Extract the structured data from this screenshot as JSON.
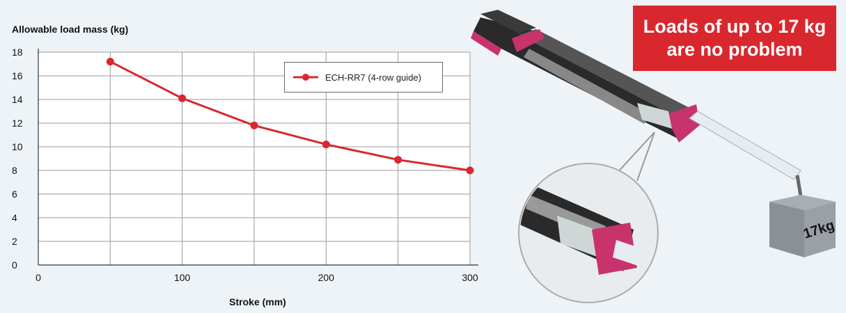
{
  "chart_data": {
    "type": "line",
    "ylabel": "Allowable load mass (kg)",
    "xlabel": "Stroke (mm)",
    "xlim": [
      0,
      300
    ],
    "ylim": [
      0,
      18
    ],
    "xticks": [
      "0",
      "100",
      "200",
      "300"
    ],
    "xtick_values": [
      0,
      100,
      200,
      300
    ],
    "yticks": [
      "0",
      "2",
      "4",
      "6",
      "8",
      "10",
      "12",
      "14",
      "16",
      "18"
    ],
    "ytick_values": [
      0,
      2,
      4,
      6,
      8,
      10,
      12,
      14,
      16,
      18
    ],
    "grid": true,
    "legend_position": "top-right",
    "series": [
      {
        "name": "ECH-RR7 (4-row guide)",
        "color": "#d9272e",
        "x": [
          50,
          100,
          150,
          200,
          250,
          300
        ],
        "y": [
          17.2,
          14.1,
          11.8,
          10.2,
          8.9,
          8.0
        ]
      }
    ]
  },
  "callout": {
    "line1": "Loads of up to 17 kg",
    "line2": "are no problem"
  },
  "illustration": {
    "weight_label": "17kg",
    "accent_color": "#d9272e"
  }
}
